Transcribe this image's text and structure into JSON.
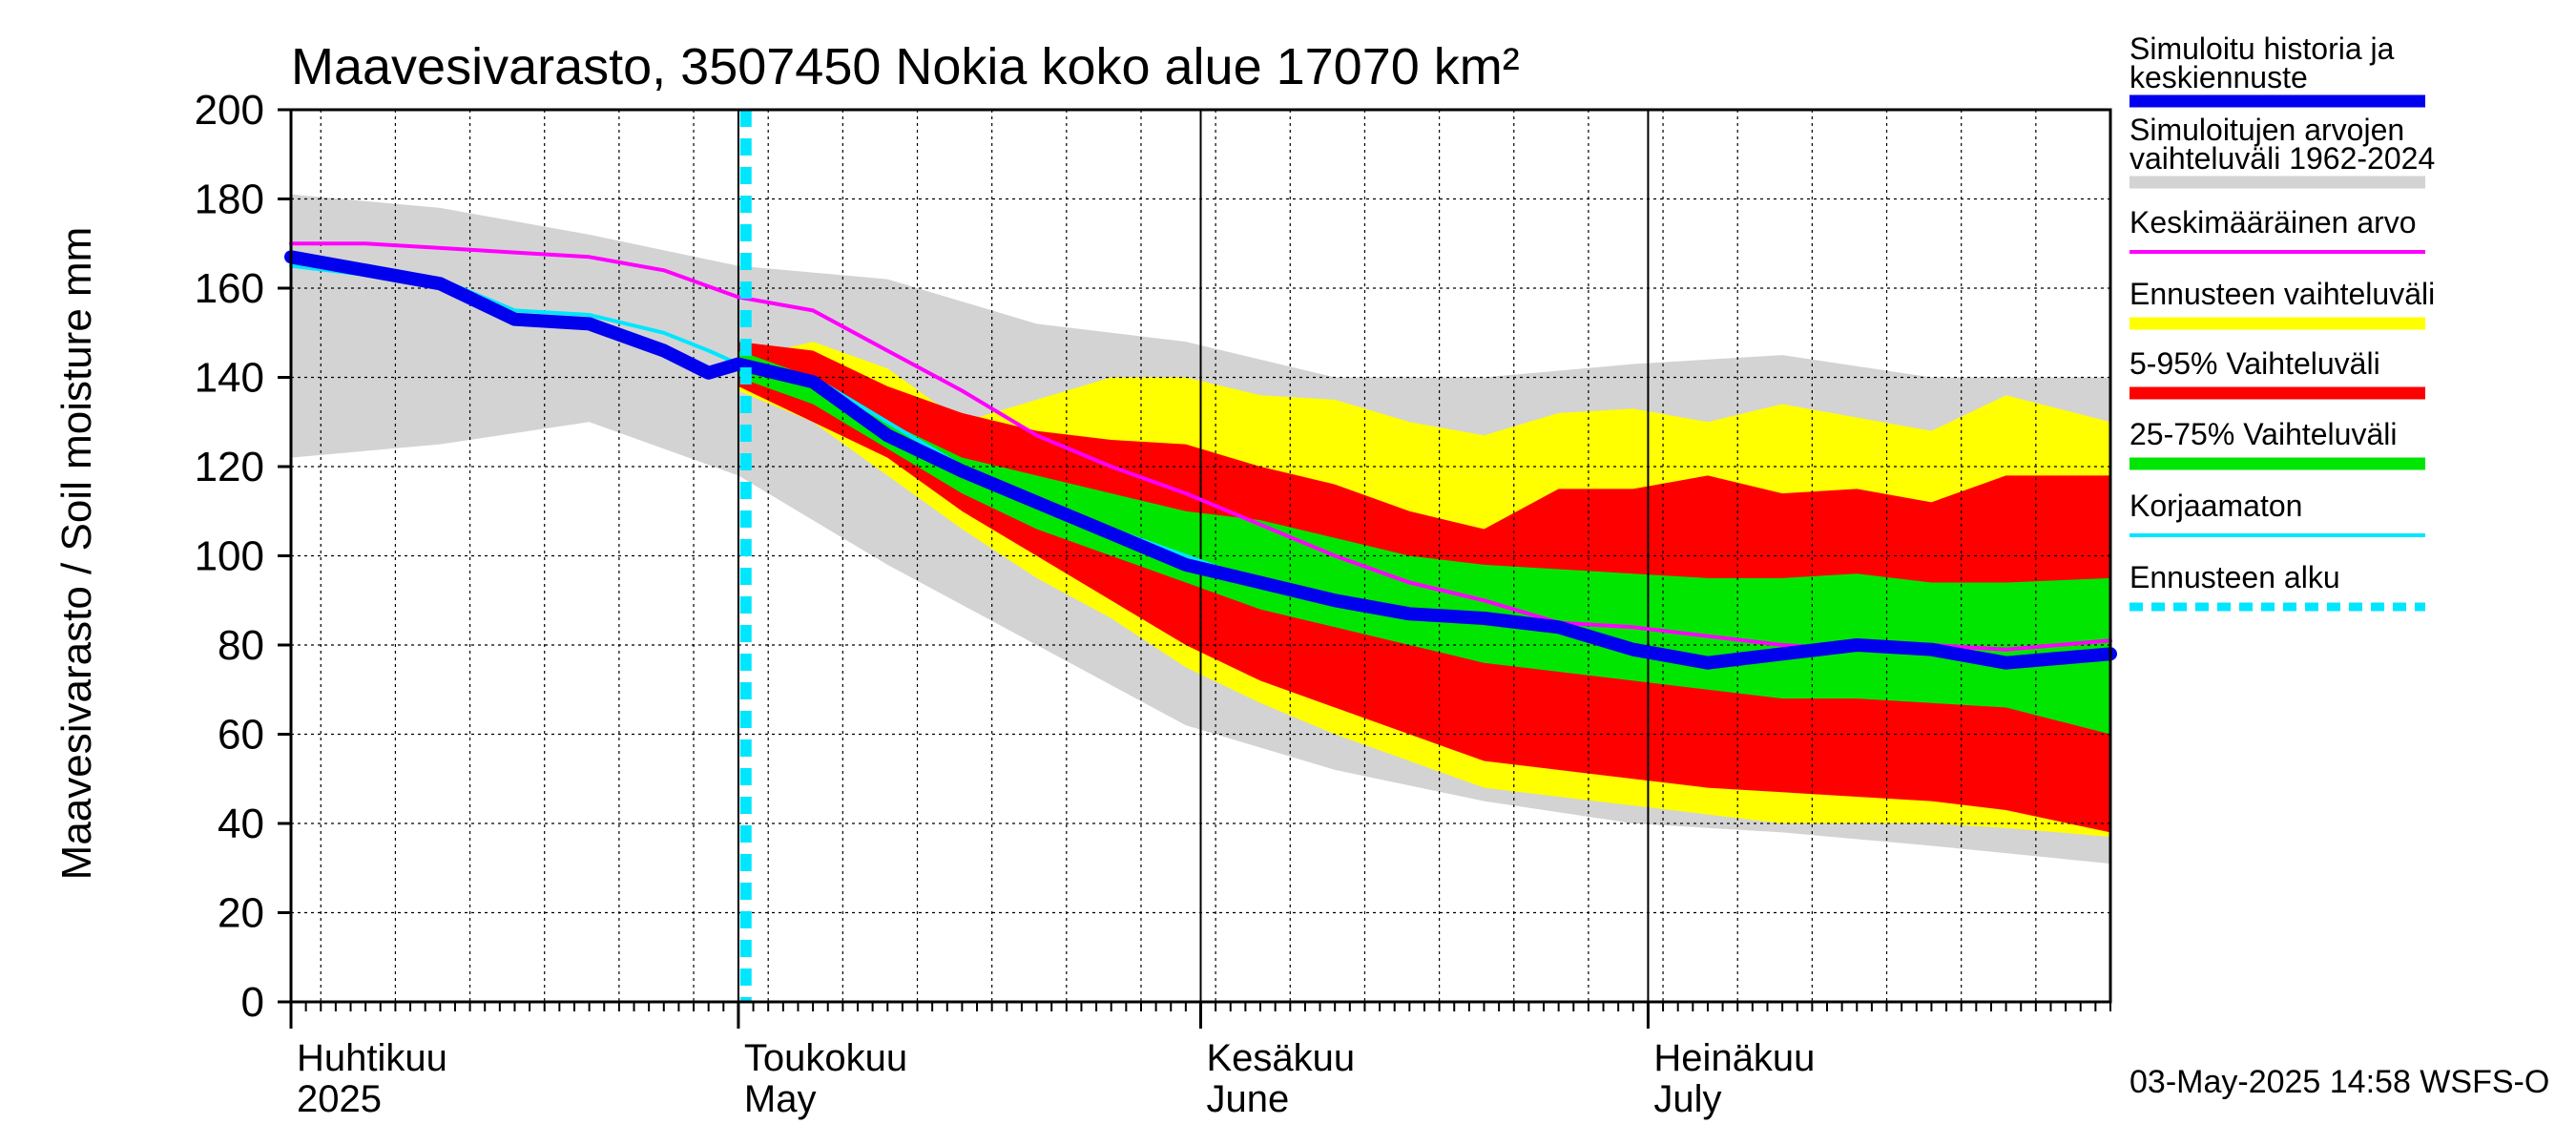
{
  "chart_data": {
    "type": "area",
    "title": "Maavesivarasto, 3507450 Nokia koko alue 17070 km²",
    "ylabel": "Maavesivarasto / Soil moisture   mm",
    "ylim": [
      0,
      200
    ],
    "yticks": [
      0,
      20,
      40,
      60,
      80,
      100,
      120,
      140,
      160,
      180,
      200
    ],
    "x_unit": "day index, 0 = 1 April 2025",
    "xlim": [
      0,
      122
    ],
    "months": [
      {
        "label": "Huhtikuu",
        "label2": "2025",
        "start_day": 0
      },
      {
        "label": "Toukokuu",
        "label2": "May",
        "start_day": 30
      },
      {
        "label": "Kesäkuu",
        "label2": "June",
        "start_day": 61
      },
      {
        "label": "Heinäkuu",
        "label2": "July",
        "start_day": 91
      }
    ],
    "forecast_start_day": 30.5,
    "series": [
      {
        "name": "Simuloitujen arvojen vaihteluväli 1962-2024",
        "color": "#d3d3d3",
        "kind": "band",
        "x": [
          0,
          10,
          20,
          30,
          40,
          50,
          60,
          70,
          80,
          90,
          100,
          110,
          122
        ],
        "upper": [
          181,
          178,
          172,
          165,
          162,
          152,
          148,
          140,
          140,
          143,
          145,
          140,
          140
        ],
        "lower": [
          122,
          125,
          130,
          118,
          98,
          80,
          62,
          52,
          45,
          40,
          38,
          35,
          31
        ]
      },
      {
        "name": "Ennusteen vaihteluväli",
        "color": "#ffff00",
        "kind": "band",
        "x": [
          30,
          35,
          40,
          45,
          50,
          55,
          60,
          65,
          70,
          75,
          80,
          85,
          90,
          95,
          100,
          105,
          110,
          115,
          122
        ],
        "upper": [
          144,
          148,
          142,
          130,
          135,
          140,
          140,
          136,
          135,
          130,
          127,
          132,
          133,
          130,
          134,
          131,
          128,
          136,
          130
        ],
        "lower": [
          137,
          130,
          118,
          106,
          95,
          86,
          75,
          67,
          60,
          54,
          48,
          46,
          44,
          42,
          40,
          40,
          40,
          39,
          37
        ]
      },
      {
        "name": "5-95% Vaihteluväli",
        "color": "#ff0000",
        "kind": "band",
        "x": [
          30,
          35,
          40,
          45,
          50,
          55,
          60,
          65,
          70,
          75,
          80,
          85,
          90,
          95,
          100,
          105,
          110,
          115,
          122
        ],
        "upper": [
          148,
          146,
          138,
          132,
          128,
          126,
          125,
          120,
          116,
          110,
          106,
          115,
          115,
          118,
          114,
          115,
          112,
          118,
          118
        ],
        "lower": [
          138,
          130,
          122,
          110,
          100,
          90,
          80,
          72,
          66,
          60,
          54,
          52,
          50,
          48,
          47,
          46,
          45,
          43,
          38
        ]
      },
      {
        "name": "25-75% Vaihteluväli",
        "color": "#00e600",
        "kind": "band",
        "x": [
          30,
          35,
          40,
          45,
          50,
          55,
          60,
          65,
          70,
          75,
          80,
          85,
          90,
          95,
          100,
          105,
          110,
          115,
          122
        ],
        "upper": [
          146,
          140,
          130,
          122,
          118,
          114,
          110,
          108,
          104,
          100,
          98,
          97,
          96,
          95,
          95,
          96,
          94,
          94,
          95
        ],
        "lower": [
          140,
          134,
          124,
          114,
          106,
          100,
          94,
          88,
          84,
          80,
          76,
          74,
          72,
          70,
          68,
          68,
          67,
          66,
          60
        ]
      },
      {
        "name": "Keskimääräinen arvo",
        "color": "#ff00ff",
        "kind": "line",
        "x": [
          0,
          5,
          10,
          15,
          20,
          25,
          30,
          35,
          40,
          45,
          50,
          55,
          60,
          65,
          70,
          75,
          80,
          85,
          90,
          95,
          100,
          105,
          110,
          115,
          122
        ],
        "values": [
          170,
          170,
          169,
          168,
          167,
          164,
          158,
          155,
          146,
          137,
          127,
          120,
          114,
          107,
          100,
          94,
          90,
          85,
          84,
          82,
          80,
          79,
          80,
          79,
          81
        ]
      },
      {
        "name": "Korjaamaton",
        "color": "#00e6ff",
        "kind": "line",
        "x": [
          0,
          5,
          10,
          15,
          20,
          25,
          28,
          30,
          35,
          40,
          45,
          50,
          55,
          60,
          65,
          70,
          75,
          80,
          85,
          90,
          95,
          100,
          105,
          110,
          115,
          122
        ],
        "values": [
          165,
          163,
          162,
          155,
          154,
          150,
          146,
          143,
          140,
          130,
          120,
          112,
          106,
          100,
          94,
          90,
          87,
          85,
          85,
          80,
          77,
          78,
          80,
          79,
          77,
          79
        ]
      },
      {
        "name": "Simuloitu historia ja keskiennuste",
        "color": "#0000ee",
        "kind": "line",
        "x": [
          0,
          5,
          10,
          15,
          20,
          25,
          28,
          30,
          35,
          40,
          45,
          50,
          55,
          60,
          65,
          70,
          75,
          80,
          85,
          90,
          95,
          100,
          105,
          110,
          115,
          122
        ],
        "values": [
          167,
          164,
          161,
          153,
          152,
          146,
          141,
          143,
          139,
          127,
          119,
          112,
          105,
          98,
          94,
          90,
          87,
          86,
          84,
          79,
          76,
          78,
          80,
          79,
          76,
          78
        ]
      }
    ]
  },
  "legend": [
    {
      "label": "Simuloitu historia ja",
      "label2": "keskiennuste",
      "color": "#0000ee",
      "style": "thick"
    },
    {
      "label": "Simuloitujen arvojen",
      "label2": "vaihteluväli 1962-2024",
      "color": "#d3d3d3",
      "style": "thick"
    },
    {
      "label": "Keskimääräinen arvo",
      "label2": "",
      "color": "#ff00ff",
      "style": "thin"
    },
    {
      "label": "Ennusteen vaihteluväli",
      "label2": "",
      "color": "#ffff00",
      "style": "thick"
    },
    {
      "label": "5-95% Vaihteluväli",
      "label2": "",
      "color": "#ff0000",
      "style": "thick"
    },
    {
      "label": "25-75% Vaihteluväli",
      "label2": "",
      "color": "#00e600",
      "style": "thick"
    },
    {
      "label": "Korjaamaton",
      "label2": "",
      "color": "#00e6ff",
      "style": "thin"
    },
    {
      "label": "Ennusteen alku",
      "label2": "",
      "color": "#00e6ff",
      "style": "dashed"
    }
  ],
  "footer": "03-May-2025 14:58 WSFS-O"
}
